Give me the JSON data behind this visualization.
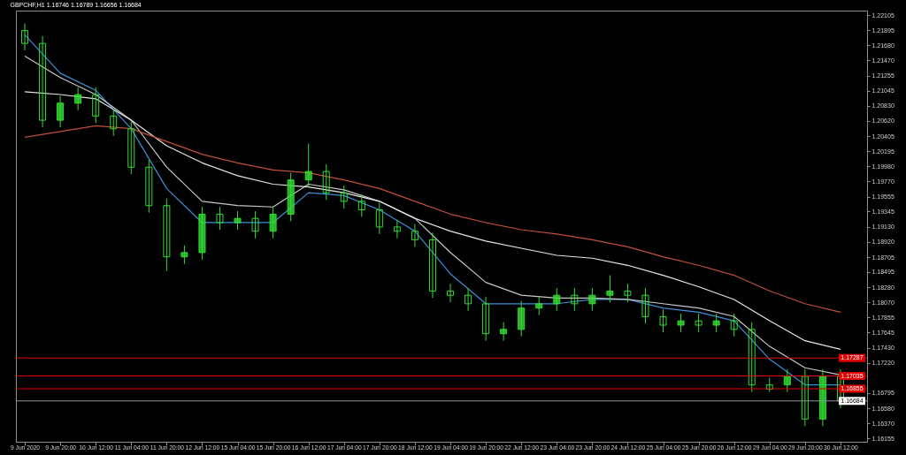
{
  "chart_data": {
    "type": "candlestick",
    "title": "GBPCHF,H1  1.16746 1.16789 1.16656 1.16684",
    "color": "#33dd33",
    "categories": [
      "9 Jun 2020",
      null,
      "9 Jun 20:00",
      null,
      "10 Jun 12:00",
      null,
      "11 Jun 04:00",
      null,
      "11 Jun 20:00",
      null,
      "12 Jun 12:00",
      null,
      "15 Jun 04:00",
      null,
      "15 Jun 20:00",
      null,
      "16 Jun 12:00",
      null,
      "17 Jun 04:00",
      null,
      "17 Jun 20:00",
      null,
      "18 Jun 12:00",
      null,
      "19 Jun 04:00",
      null,
      "19 Jun 20:00",
      null,
      "22 Jun 12:00",
      null,
      "23 Jun 04:00",
      null,
      "23 Jun 20:00",
      null,
      "24 Jun 12:00",
      null,
      "25 Jun 04:00",
      null,
      "25 Jun 20:00",
      null,
      "26 Jun 12:00",
      null,
      "29 Jun 04:00",
      null,
      "29 Jun 20:00",
      null,
      "30 Jun 12:00",
      null
    ],
    "ohlc": [
      [
        1.21889,
        1.2199,
        1.2161,
        1.21709
      ],
      [
        1.21709,
        1.2181,
        1.2053,
        1.20629
      ],
      [
        1.20629,
        1.2097,
        1.2053,
        1.20869
      ],
      [
        1.20869,
        1.2109,
        1.2077,
        1.20989
      ],
      [
        1.20989,
        1.2109,
        1.2059,
        1.20689
      ],
      [
        1.20689,
        1.2079,
        1.2041,
        1.20509
      ],
      [
        1.20509,
        1.2061,
        1.1987,
        1.19969
      ],
      [
        1.19969,
        1.2007,
        1.1933,
        1.19429
      ],
      [
        1.19429,
        1.1953,
        1.1851,
        1.18709
      ],
      [
        1.18709,
        1.1887,
        1.1861,
        1.18769
      ],
      [
        1.18769,
        1.1941,
        1.1867,
        1.19309
      ],
      [
        1.19309,
        1.1941,
        1.1909,
        1.19189
      ],
      [
        1.19189,
        1.1935,
        1.1909,
        1.19249
      ],
      [
        1.19249,
        1.1935,
        1.1897,
        1.19069
      ],
      [
        1.19069,
        1.1941,
        1.1897,
        1.19309
      ],
      [
        1.19309,
        1.1989,
        1.1921,
        1.19789
      ],
      [
        1.19789,
        1.203,
        1.1969,
        1.19909
      ],
      [
        1.19909,
        1.2001,
        1.1951,
        1.19609
      ],
      [
        1.19609,
        1.1971,
        1.1939,
        1.19489
      ],
      [
        1.19489,
        1.1959,
        1.1927,
        1.19369
      ],
      [
        1.19369,
        1.1947,
        1.1903,
        1.19129
      ],
      [
        1.19129,
        1.1923,
        1.1897,
        1.19069
      ],
      [
        1.19069,
        1.1917,
        1.1885,
        1.18949
      ],
      [
        1.18949,
        1.1905,
        1.1813,
        1.18229
      ],
      [
        1.18229,
        1.1833,
        1.1807,
        1.18169
      ],
      [
        1.18169,
        1.1827,
        1.1795,
        1.18049
      ],
      [
        1.18049,
        1.1815,
        1.1753,
        1.17629
      ],
      [
        1.17629,
        1.1779,
        1.1753,
        1.17689
      ],
      [
        1.17689,
        1.1809,
        1.1759,
        1.17989
      ],
      [
        1.17989,
        1.1815,
        1.1789,
        1.18049
      ],
      [
        1.18049,
        1.1827,
        1.1795,
        1.18169
      ],
      [
        1.18169,
        1.1827,
        1.1795,
        1.18049
      ],
      [
        1.18049,
        1.1827,
        1.1795,
        1.18169
      ],
      [
        1.18169,
        1.1845,
        1.1807,
        1.18229
      ],
      [
        1.18229,
        1.1833,
        1.1807,
        1.18169
      ],
      [
        1.18169,
        1.1827,
        1.1777,
        1.17869
      ],
      [
        1.17869,
        1.1797,
        1.1765,
        1.17749
      ],
      [
        1.17749,
        1.1791,
        1.1765,
        1.17809
      ],
      [
        1.17809,
        1.1791,
        1.1765,
        1.17749
      ],
      [
        1.17749,
        1.1791,
        1.1765,
        1.17809
      ],
      [
        1.17809,
        1.1791,
        1.1759,
        1.17689
      ],
      [
        1.17689,
        1.1779,
        1.1681,
        1.16909
      ],
      [
        1.16909,
        1.1701,
        1.1681,
        1.16849
      ],
      [
        1.16909,
        1.1713,
        1.1681,
        1.17029
      ],
      [
        1.17029,
        1.1713,
        1.1633,
        1.16429
      ],
      [
        1.16429,
        1.1713,
        1.1633,
        1.17029
      ],
      [
        1.17029,
        1.1713,
        1.1658,
        1.16684
      ],
      null
    ],
    "series": [
      {
        "type": "line",
        "color": "#3a8fd8",
        "x": [
          "9 Jun 2020",
          "9 Jun 20:00",
          "10 Jun 12:00",
          "11 Jun 04:00",
          "11 Jun 20:00",
          "12 Jun 12:00",
          "15 Jun 04:00",
          "15 Jun 20:00",
          "16 Jun 12:00",
          "17 Jun 04:00",
          "17 Jun 20:00",
          "18 Jun 12:00",
          "19 Jun 04:00",
          "19 Jun 20:00",
          "22 Jun 12:00",
          "23 Jun 04:00",
          "23 Jun 20:00",
          "24 Jun 12:00",
          "25 Jun 04:00",
          "25 Jun 20:00",
          "26 Jun 12:00",
          "29 Jun 04:00",
          "29 Jun 20:00",
          "30 Jun 12:00"
        ],
        "values": [
          1.2183,
          1.2129,
          1.2105,
          1.2051,
          1.1967,
          1.1919,
          1.1919,
          1.1919,
          1.1961,
          1.1957,
          1.1937,
          1.1907,
          1.1847,
          1.1805,
          1.1805,
          1.1805,
          1.1811,
          1.1811,
          1.1799,
          1.1793,
          1.1781,
          1.1727,
          1.1691,
          1.1691
        ]
      },
      {
        "type": "line",
        "color": "#c8c8c8",
        "x": [
          "9 Jun 2020",
          "9 Jun 20:00",
          "10 Jun 12:00",
          "11 Jun 04:00",
          "11 Jun 20:00",
          "12 Jun 12:00",
          "15 Jun 04:00",
          "15 Jun 20:00",
          "16 Jun 12:00",
          "17 Jun 04:00",
          "17 Jun 20:00",
          "18 Jun 12:00",
          "19 Jun 04:00",
          "19 Jun 20:00",
          "22 Jun 12:00",
          "23 Jun 04:00",
          "23 Jun 20:00",
          "24 Jun 12:00",
          "25 Jun 04:00",
          "25 Jun 20:00",
          "26 Jun 12:00",
          "29 Jun 04:00",
          "29 Jun 20:00",
          "30 Jun 12:00"
        ],
        "values": [
          1.2153,
          1.2123,
          1.2099,
          1.2063,
          1.1997,
          1.1949,
          1.1943,
          1.1941,
          1.1973,
          1.1965,
          1.1949,
          1.1925,
          1.1877,
          1.1835,
          1.1817,
          1.1813,
          1.1813,
          1.1811,
          1.1805,
          1.1799,
          1.1787,
          1.1745,
          1.1715,
          1.1705
        ]
      },
      {
        "type": "line",
        "color": "#e6e6e6",
        "x": [
          "9 Jun 2020",
          "9 Jun 20:00",
          "10 Jun 12:00",
          "11 Jun 04:00",
          "11 Jun 20:00",
          "12 Jun 12:00",
          "15 Jun 04:00",
          "15 Jun 20:00",
          "16 Jun 12:00",
          "17 Jun 04:00",
          "17 Jun 20:00",
          "18 Jun 12:00",
          "19 Jun 04:00",
          "19 Jun 20:00",
          "22 Jun 12:00",
          "23 Jun 04:00",
          "23 Jun 20:00",
          "24 Jun 12:00",
          "25 Jun 04:00",
          "25 Jun 20:00",
          "26 Jun 12:00",
          "29 Jun 04:00",
          "29 Jun 20:00",
          "30 Jun 12:00"
        ],
        "values": [
          1.2103,
          1.2099,
          1.2093,
          1.2063,
          1.2027,
          1.2003,
          1.1985,
          1.1973,
          1.1969,
          1.1961,
          1.1949,
          1.1925,
          1.1907,
          1.1893,
          1.1883,
          1.1873,
          1.1869,
          1.1859,
          1.1845,
          1.1829,
          1.1811,
          1.1781,
          1.1753,
          1.1741
        ]
      },
      {
        "type": "line",
        "color": "#c0503a",
        "x": [
          "9 Jun 2020",
          "9 Jun 20:00",
          "10 Jun 12:00",
          "11 Jun 04:00",
          "11 Jun 20:00",
          "12 Jun 12:00",
          "15 Jun 04:00",
          "15 Jun 20:00",
          "16 Jun 12:00",
          "17 Jun 04:00",
          "17 Jun 20:00",
          "18 Jun 12:00",
          "19 Jun 04:00",
          "19 Jun 20:00",
          "22 Jun 12:00",
          "23 Jun 04:00",
          "23 Jun 20:00",
          "24 Jun 12:00",
          "25 Jun 04:00",
          "25 Jun 20:00",
          "26 Jun 12:00",
          "29 Jun 04:00",
          "29 Jun 20:00",
          "30 Jun 12:00"
        ],
        "values": [
          1.2039,
          1.2047,
          1.2055,
          1.2051,
          1.2033,
          1.2015,
          1.2003,
          1.1993,
          1.1989,
          1.1979,
          1.1967,
          1.1949,
          1.1931,
          1.1919,
          1.1909,
          1.1903,
          1.1895,
          1.1885,
          1.1871,
          1.1859,
          1.1845,
          1.1823,
          1.1805,
          1.1793
        ]
      }
    ],
    "ylim": [
      1.1611,
      1.2217
    ],
    "yticks": [
      1.22105,
      1.21895,
      {
        "value": 1.2168,
        "label": "1.21680"
      },
      {
        "value": 1.2147,
        "label": "1.21470"
      },
      1.21255,
      1.21045,
      {
        "value": 1.2083,
        "label": "1.20830"
      },
      {
        "value": 1.2062,
        "label": "1.20620"
      },
      1.20405,
      1.20195,
      {
        "value": 1.1998,
        "label": "1.19980"
      },
      {
        "value": 1.1977,
        "label": "1.19770"
      },
      1.19555,
      1.19345,
      {
        "value": 1.1913,
        "label": "1.19130"
      },
      {
        "value": 1.1892,
        "label": "1.18920"
      },
      1.18705,
      1.18495,
      {
        "value": 1.1828,
        "label": "1.18280"
      },
      {
        "value": 1.1807,
        "label": "1.18070"
      },
      1.17855,
      1.17645,
      {
        "value": 1.1743,
        "label": "1.17430"
      },
      {
        "value": 1.1722,
        "label": "1.17220"
      },
      1.16795,
      {
        "value": 1.1658,
        "label": "1.16580"
      },
      {
        "value": 1.1637,
        "label": "1.16370"
      },
      1.16155
    ],
    "ref_lines": [
      {
        "axis": "y",
        "value": 1.17287,
        "label": "1.17287",
        "color": "#e00000"
      },
      {
        "axis": "y",
        "value": 1.17035,
        "label": "1.17035",
        "color": "#e00000"
      },
      {
        "axis": "y",
        "value": 1.16855,
        "label": "1.16855",
        "color": "#e00000"
      },
      {
        "axis": "y",
        "value": 1.16684,
        "label": "1.16684",
        "color": "#8a96a0"
      }
    ]
  }
}
